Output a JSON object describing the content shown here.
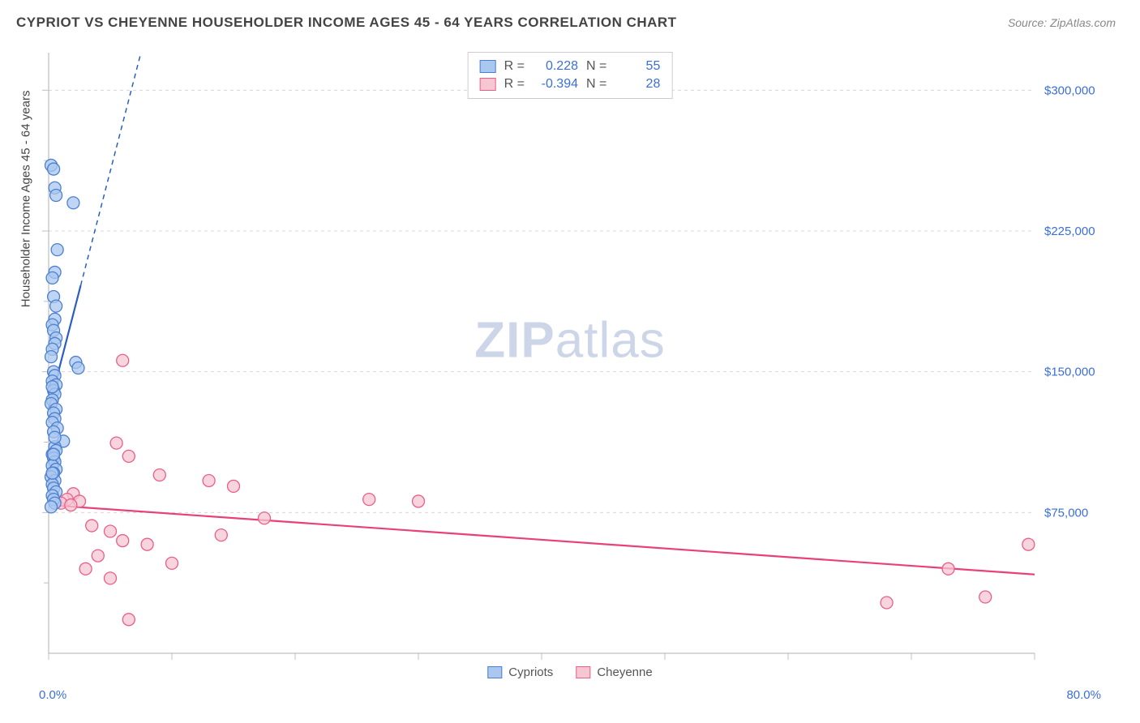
{
  "header": {
    "title": "CYPRIOT VS CHEYENNE HOUSEHOLDER INCOME AGES 45 - 64 YEARS CORRELATION CHART",
    "source_prefix": "Source: ",
    "source": "ZipAtlas.com"
  },
  "watermark": {
    "pre": "ZIP",
    "post": "atlas"
  },
  "chart": {
    "type": "scatter",
    "y_axis_label": "Householder Income Ages 45 - 64 years",
    "x_min_label": "0.0%",
    "x_max_label": "80.0%",
    "x_domain": [
      0,
      80
    ],
    "y_domain": [
      0,
      320000
    ],
    "y_gridlines": [
      {
        "value": 75000,
        "label": "$75,000"
      },
      {
        "value": 150000,
        "label": "$150,000"
      },
      {
        "value": 225000,
        "label": "$225,000"
      },
      {
        "value": 300000,
        "label": "$300,000"
      }
    ],
    "x_ticks": [
      0,
      10,
      20,
      30,
      40,
      50,
      60,
      70,
      80
    ],
    "y_ticks_minor": [
      37500,
      112500,
      187500,
      262500
    ],
    "background_color": "#ffffff",
    "grid_color": "#d8d8d8",
    "grid_dash": "4,4",
    "axis_color": "#bfbfbf",
    "axis_label_color": "#3b6fd8",
    "marker_radius": 7.5,
    "marker_stroke_width": 1.3,
    "trend_line_width": 2.2,
    "trend_dash_width": 1.5
  },
  "series": {
    "cypriots": {
      "name": "Cypriots",
      "R": "0.228",
      "N": "55",
      "fill": "#a9c7ef",
      "stroke": "#4b7fd1",
      "line_color": "#2a5fc0",
      "trend_solid": {
        "x1": 0,
        "y1": 130000,
        "x2": 2.6,
        "y2": 196000
      },
      "trend_dash": {
        "x1": 2.6,
        "y1": 196000,
        "x2": 9.5,
        "y2": 371000
      },
      "points": [
        [
          0.2,
          260000
        ],
        [
          0.4,
          258000
        ],
        [
          0.5,
          248000
        ],
        [
          0.6,
          244000
        ],
        [
          2.0,
          240000
        ],
        [
          0.7,
          215000
        ],
        [
          0.5,
          203000
        ],
        [
          0.3,
          200000
        ],
        [
          0.4,
          190000
        ],
        [
          0.6,
          185000
        ],
        [
          0.5,
          178000
        ],
        [
          0.3,
          175000
        ],
        [
          0.4,
          172000
        ],
        [
          0.6,
          168000
        ],
        [
          0.5,
          165000
        ],
        [
          0.3,
          162000
        ],
        [
          0.2,
          158000
        ],
        [
          2.2,
          155000
        ],
        [
          2.4,
          152000
        ],
        [
          0.4,
          150000
        ],
        [
          0.5,
          148000
        ],
        [
          0.3,
          145000
        ],
        [
          0.6,
          143000
        ],
        [
          0.4,
          140000
        ],
        [
          0.5,
          138000
        ],
        [
          0.3,
          135000
        ],
        [
          0.2,
          133000
        ],
        [
          0.6,
          130000
        ],
        [
          0.4,
          128000
        ],
        [
          0.5,
          125000
        ],
        [
          0.3,
          123000
        ],
        [
          0.7,
          120000
        ],
        [
          0.4,
          118000
        ],
        [
          1.2,
          113000
        ],
        [
          0.5,
          110000
        ],
        [
          0.6,
          108000
        ],
        [
          0.3,
          106000
        ],
        [
          0.4,
          104000
        ],
        [
          0.5,
          102000
        ],
        [
          0.3,
          100000
        ],
        [
          0.6,
          98000
        ],
        [
          0.4,
          96000
        ],
        [
          0.2,
          94000
        ],
        [
          0.5,
          92000
        ],
        [
          0.3,
          90000
        ],
        [
          0.4,
          88000
        ],
        [
          0.6,
          86000
        ],
        [
          0.3,
          84000
        ],
        [
          0.4,
          82000
        ],
        [
          0.5,
          80000
        ],
        [
          0.2,
          78000
        ],
        [
          0.3,
          96000
        ],
        [
          0.4,
          106000
        ],
        [
          0.5,
          115000
        ],
        [
          0.3,
          142000
        ]
      ]
    },
    "cheyenne": {
      "name": "Cheyenne",
      "R": "-0.394",
      "N": "28",
      "fill": "#f6c6d3",
      "stroke": "#e95f88",
      "line_color": "#e8417a",
      "trend_solid": {
        "x1": 0,
        "y1": 79000,
        "x2": 80,
        "y2": 42000
      },
      "points": [
        [
          6.0,
          156000
        ],
        [
          5.5,
          112000
        ],
        [
          6.5,
          105000
        ],
        [
          9.0,
          95000
        ],
        [
          13.0,
          92000
        ],
        [
          15.0,
          89000
        ],
        [
          26.0,
          82000
        ],
        [
          30.0,
          81000
        ],
        [
          2.0,
          85000
        ],
        [
          1.5,
          82000
        ],
        [
          2.5,
          81000
        ],
        [
          1.0,
          80000
        ],
        [
          1.8,
          79000
        ],
        [
          3.5,
          68000
        ],
        [
          5.0,
          65000
        ],
        [
          6.0,
          60000
        ],
        [
          8.0,
          58000
        ],
        [
          4.0,
          52000
        ],
        [
          10.0,
          48000
        ],
        [
          14.0,
          63000
        ],
        [
          17.5,
          72000
        ],
        [
          79.5,
          58000
        ],
        [
          73.0,
          45000
        ],
        [
          76.0,
          30000
        ],
        [
          68.0,
          27000
        ],
        [
          5.0,
          40000
        ],
        [
          3.0,
          45000
        ],
        [
          6.5,
          18000
        ]
      ]
    }
  }
}
